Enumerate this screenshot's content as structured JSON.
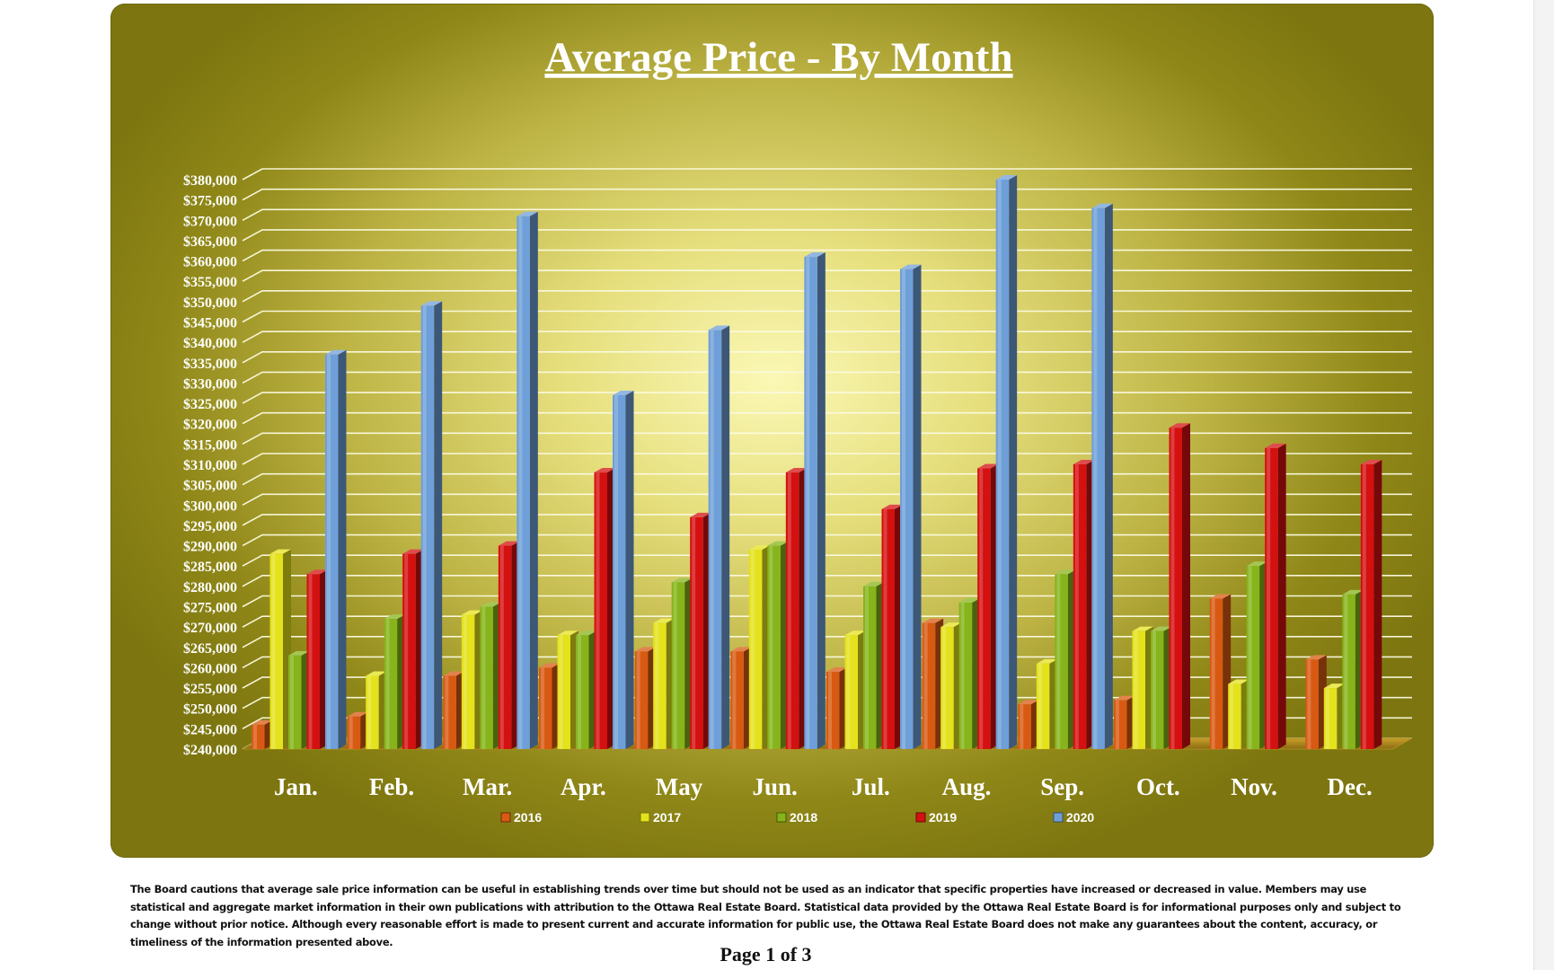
{
  "chart_data": {
    "type": "bar",
    "title": "Average Price - By Month",
    "xlabel": "",
    "ylabel": "",
    "categories": [
      "Jan.",
      "Feb.",
      "Mar.",
      "Apr.",
      "May",
      "Jun.",
      "Jul.",
      "Aug.",
      "Sep.",
      "Oct.",
      "Nov.",
      "Dec."
    ],
    "y_ticks": [
      "$240,000",
      "$245,000",
      "$250,000",
      "$255,000",
      "$260,000",
      "$265,000",
      "$270,000",
      "$275,000",
      "$280,000",
      "$285,000",
      "$290,000",
      "$295,000",
      "$300,000",
      "$305,000",
      "$310,000",
      "$315,000",
      "$320,000",
      "$325,000",
      "$330,000",
      "$335,000",
      "$340,000",
      "$345,000",
      "$350,000",
      "$355,000",
      "$360,000",
      "$365,000",
      "$370,000",
      "$375,000",
      "$380,000"
    ],
    "ylim": [
      240000,
      380000
    ],
    "grid": true,
    "legend_position": "bottom",
    "series": [
      {
        "name": "2016",
        "color": "#d85a12",
        "values": [
          246000,
          248000,
          258000,
          260000,
          264000,
          264000,
          259000,
          271000,
          251000,
          252000,
          277000,
          262000
        ]
      },
      {
        "name": "2017",
        "color": "#e4e21c",
        "values": [
          288000,
          258000,
          273000,
          268000,
          271000,
          289000,
          268000,
          270000,
          261000,
          269000,
          256000,
          255000
        ]
      },
      {
        "name": "2018",
        "color": "#86b41a",
        "values": [
          263000,
          272000,
          275000,
          268000,
          281000,
          290000,
          280000,
          276000,
          283000,
          269000,
          285000,
          278000
        ]
      },
      {
        "name": "2019",
        "color": "#d41010",
        "values": [
          283000,
          288000,
          290000,
          308000,
          297000,
          308000,
          299000,
          309000,
          310000,
          319000,
          314000,
          310000
        ]
      },
      {
        "name": "2020",
        "color": "#6f9fd8",
        "values": [
          337000,
          349000,
          371000,
          327000,
          343000,
          361000,
          358000,
          380000,
          373000,
          null,
          null,
          null
        ]
      }
    ]
  },
  "footer": {
    "disclaimer": "The Board cautions that average sale price information can be useful in establishing trends over time but should not be used as an indicator that specific properties have increased or decreased in value.   Members may use statistical and aggregate market information in their own publications with attribution to the Ottawa Real Estate Board. Statistical data provided by the Ottawa Real Estate Board is for informational purposes only and subject to change without prior notice. Although every reasonable effort is made to present current and accurate information for public use, the Ottawa Real Estate Board does not make any guarantees about the content, accuracy, or timeliness of the information presented above.",
    "page": "Page 1 of 3"
  }
}
